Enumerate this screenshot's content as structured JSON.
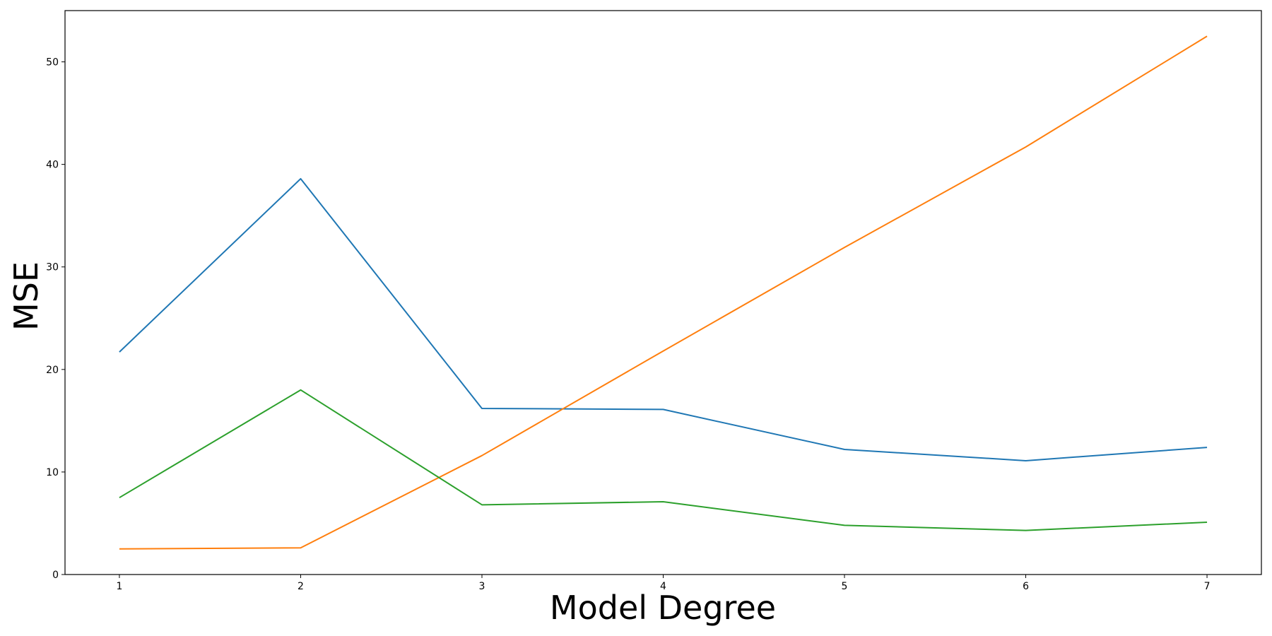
{
  "chart_data": {
    "type": "line",
    "xlabel": "Model Degree",
    "ylabel": "MSE",
    "x": [
      1,
      2,
      3,
      4,
      5,
      6,
      7
    ],
    "xlim": [
      0.7,
      7.3
    ],
    "ylim": [
      0,
      55
    ],
    "xticks": [
      "1",
      "2",
      "3",
      "4",
      "5",
      "6",
      "7"
    ],
    "yticks": [
      "0",
      "10",
      "20",
      "30",
      "40",
      "50"
    ],
    "legend": false,
    "grid": false,
    "series": [
      {
        "color": "#1f77b4",
        "values": [
          21.7,
          38.6,
          16.2,
          16.1,
          12.2,
          11.1,
          12.4
        ]
      },
      {
        "color": "#ff7f0e",
        "values": [
          2.5,
          2.6,
          11.6,
          21.8,
          31.9,
          41.7,
          52.5
        ]
      },
      {
        "color": "#2ca02c",
        "values": [
          7.5,
          18.0,
          6.8,
          7.1,
          4.8,
          4.3,
          5.1
        ]
      }
    ]
  }
}
